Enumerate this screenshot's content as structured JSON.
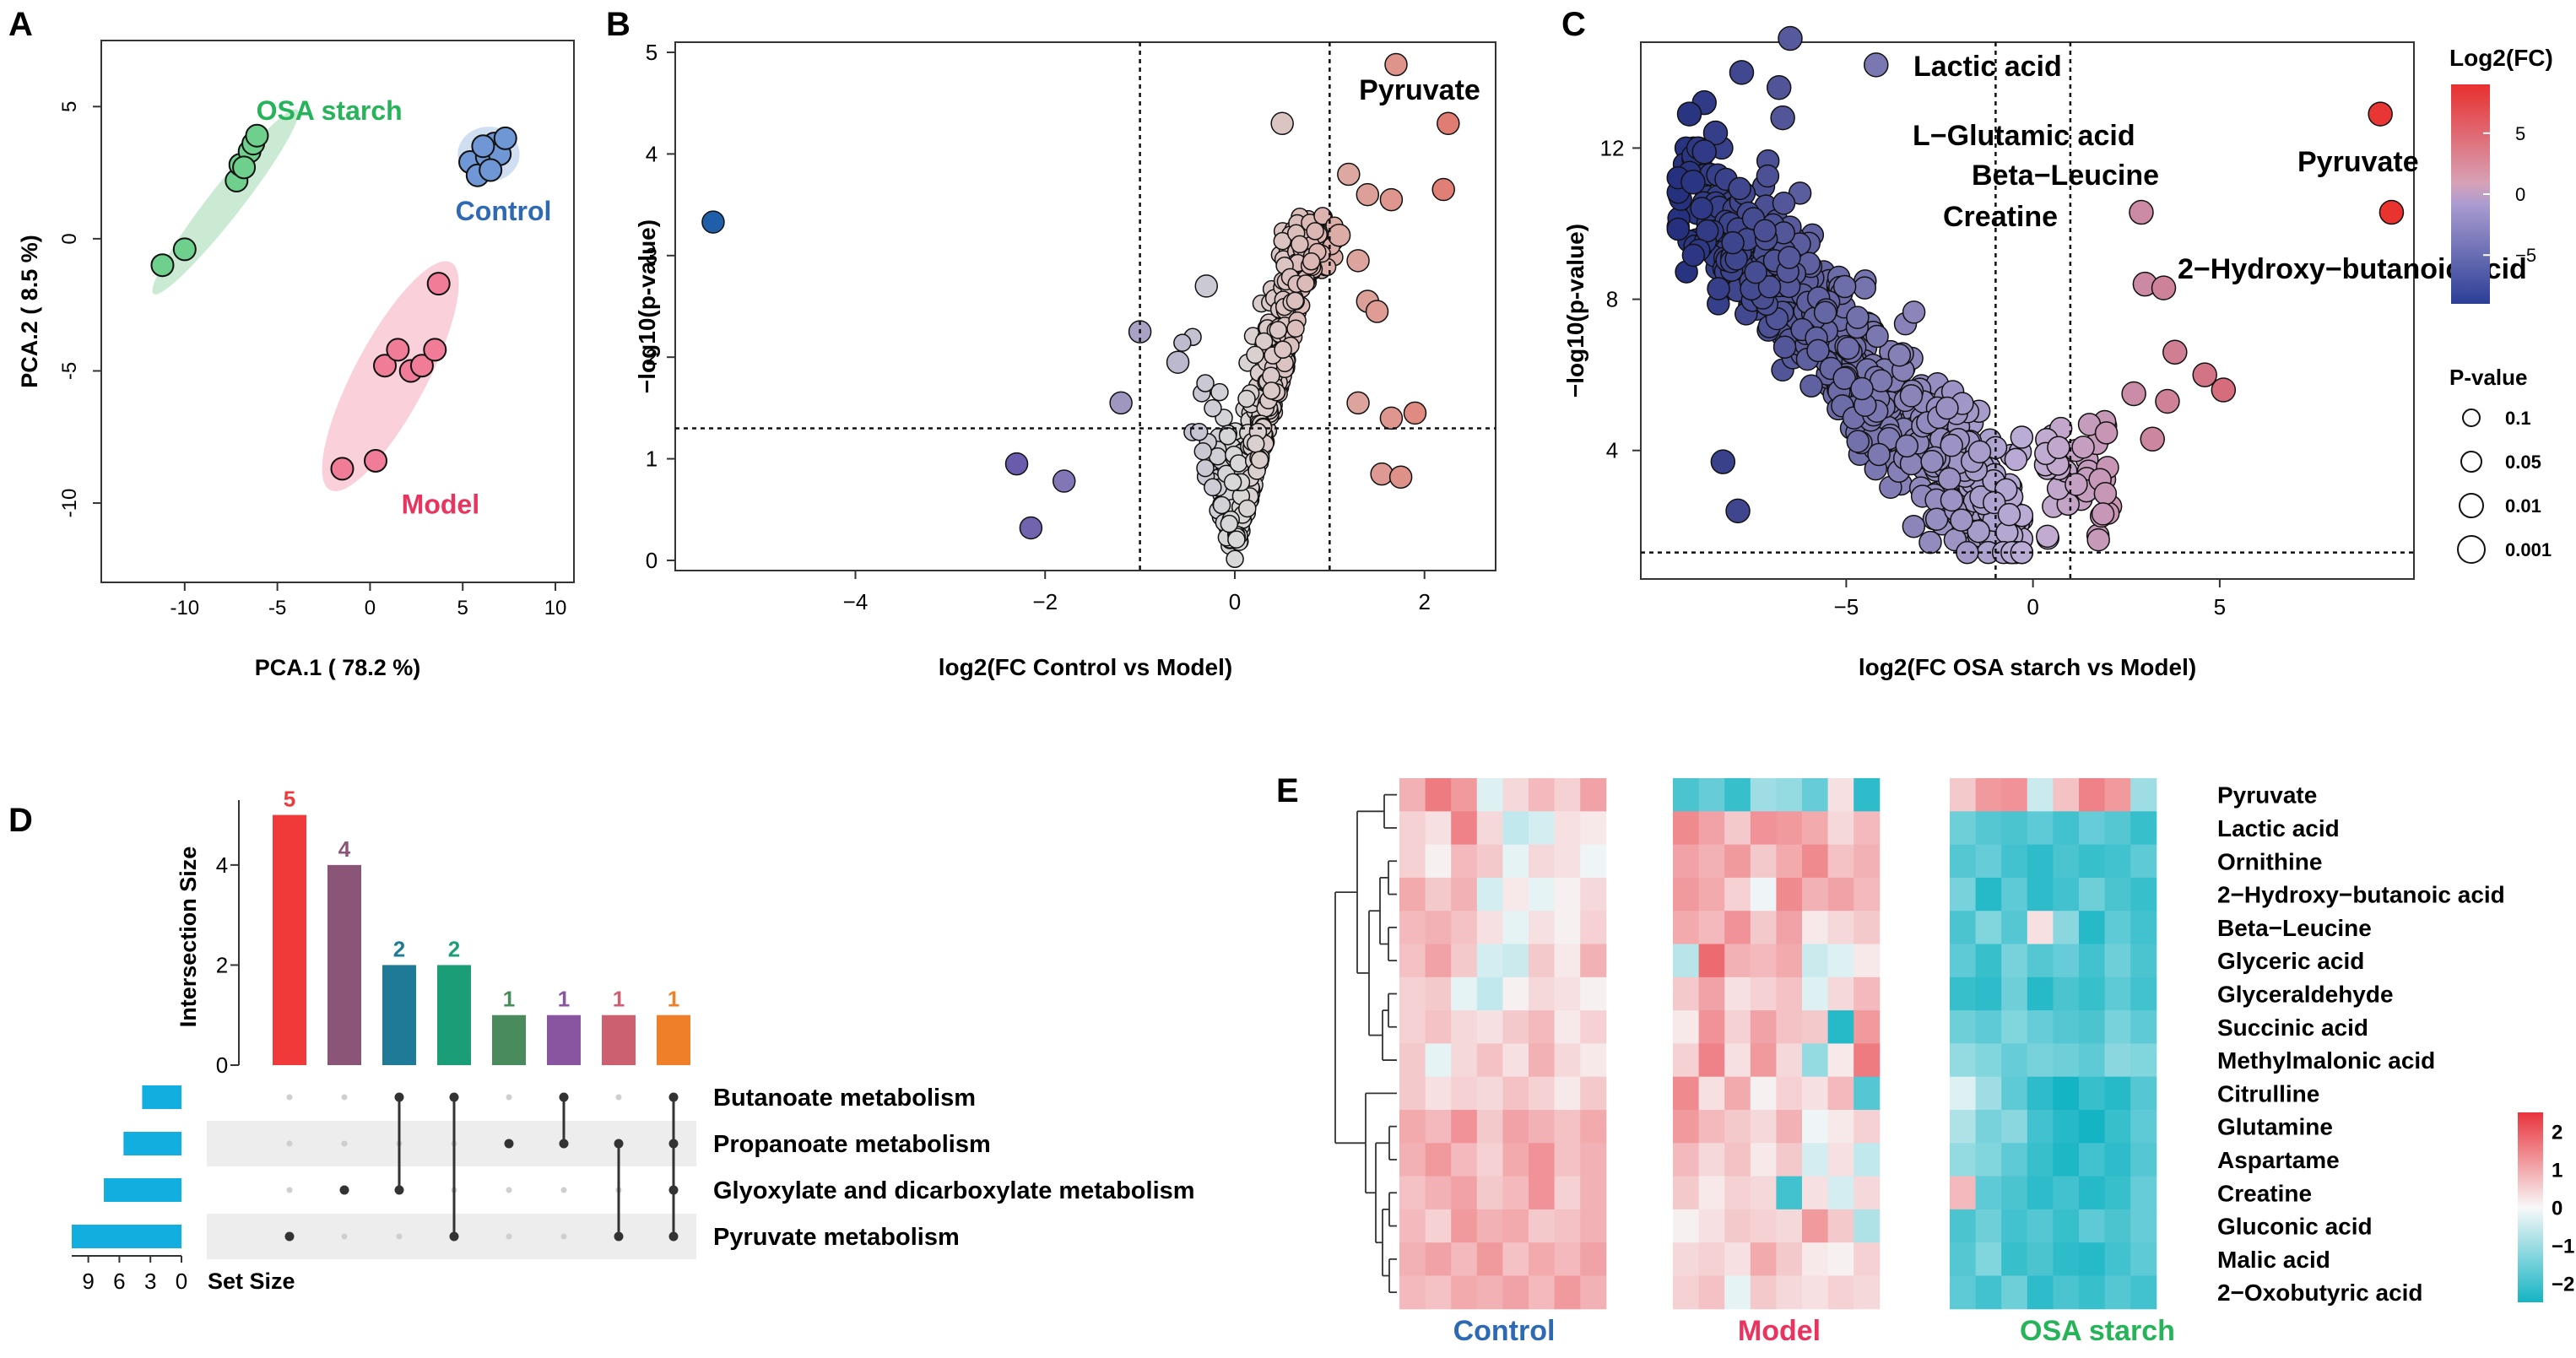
{
  "figure_title": "",
  "colors": {
    "osa": "#27b35a",
    "control": "#2e6ab4",
    "model": "#e8345f",
    "heat_high": "#e8343d",
    "heat_mid": "#f8f8f8",
    "heat_low": "#14b4c4"
  },
  "chart_data": [
    {
      "panel": "A",
      "type": "scatter",
      "title": "",
      "xlabel": "PCA.1 ( 78.2 %)",
      "ylabel": "PCA.2 ( 8.5 %)",
      "xlim": [
        -14.5,
        11
      ],
      "ylim": [
        -13,
        7.5
      ],
      "xticks": [
        -10,
        -5,
        0,
        5,
        10
      ],
      "yticks": [
        5,
        0,
        -5,
        -10
      ],
      "series": [
        {
          "name": "OSA starch",
          "color": "#6fd08e",
          "x": [
            -11.2,
            -10,
            -7.2,
            -7,
            -6.5,
            -6.3,
            -6.1,
            -6.8
          ],
          "y": [
            -1,
            -0.4,
            2.2,
            2.8,
            3.3,
            3.6,
            3.9,
            2.7
          ]
        },
        {
          "name": "Control",
          "color": "#6f97d6",
          "x": [
            5.4,
            5.8,
            6.3,
            6.7,
            7,
            7.3,
            6.5,
            6.1
          ],
          "y": [
            2.9,
            2.4,
            3.1,
            3.6,
            3.2,
            3.8,
            2.6,
            3.5
          ]
        },
        {
          "name": "Model",
          "color": "#f07c98",
          "x": [
            -1.5,
            0.3,
            0.8,
            1.5,
            2.2,
            2.8,
            3.5,
            3.7
          ],
          "y": [
            -8.7,
            -8.4,
            -4.8,
            -4.2,
            -5,
            -4.8,
            -4.2,
            -1.7
          ]
        }
      ]
    },
    {
      "panel": "B",
      "type": "scatter",
      "title": "",
      "xlabel": "log2(FC Control vs Model)",
      "ylabel": "−log10(p-value)",
      "xlim": [
        -5.9,
        2.75
      ],
      "ylim": [
        -0.1,
        5.1
      ],
      "xticks": [
        -4,
        -2,
        0,
        2
      ],
      "yticks": [
        0,
        1,
        2,
        3,
        4,
        5
      ],
      "hline": 1.3,
      "vlines": [
        -1,
        1
      ],
      "labels": [
        {
          "text": "Pyruvate",
          "x": 1.7,
          "y": 4.88
        }
      ],
      "highlights": [
        {
          "x": -5.5,
          "y": 3.33
        },
        {
          "x": 1.7,
          "y": 4.88
        },
        {
          "x": 2.25,
          "y": 4.3
        },
        {
          "x": 0.5,
          "y": 4.3
        },
        {
          "x": 1.2,
          "y": 3.8
        },
        {
          "x": 2.2,
          "y": 3.65
        },
        {
          "x": 1.4,
          "y": 3.6
        },
        {
          "x": 1.65,
          "y": 3.55
        },
        {
          "x": 1.1,
          "y": 3.2
        },
        {
          "x": 1.3,
          "y": 2.95
        },
        {
          "x": 1.4,
          "y": 2.55
        },
        {
          "x": 1.5,
          "y": 2.45
        },
        {
          "x": 1.3,
          "y": 1.55
        },
        {
          "x": 1.65,
          "y": 1.4
        },
        {
          "x": 1.9,
          "y": 1.45
        },
        {
          "x": 1.55,
          "y": 0.85
        },
        {
          "x": 1.75,
          "y": 0.82
        },
        {
          "x": -1.0,
          "y": 2.25
        },
        {
          "x": -1.2,
          "y": 1.55
        },
        {
          "x": -2.3,
          "y": 0.95
        },
        {
          "x": -1.8,
          "y": 0.78
        },
        {
          "x": -2.15,
          "y": 0.32
        },
        {
          "x": -0.6,
          "y": 1.95
        },
        {
          "x": -0.3,
          "y": 2.7
        }
      ]
    },
    {
      "panel": "C",
      "type": "scatter",
      "title": "",
      "xlabel": "log2(FC OSA starch vs Model)",
      "ylabel": "−log10(p-value)",
      "xlim": [
        -10.5,
        10.2
      ],
      "ylim": [
        0.6,
        14.8
      ],
      "xticks": [
        -5,
        0,
        5
      ],
      "yticks": [
        4,
        8,
        12
      ],
      "hline": 1.3,
      "vlines": [
        -1,
        1
      ],
      "labels": [
        {
          "text": "Lactic acid",
          "x": -5.3,
          "y": 14.3
        },
        {
          "text": "L−Glutamic acid",
          "x": -6.2,
          "y": 13.0
        },
        {
          "text": "Beta−Leucine",
          "x": -5.0,
          "y": 12.3
        },
        {
          "text": "Creatine",
          "x": -4.5,
          "y": 11.5
        },
        {
          "text": "Pyruvate",
          "x": 4.7,
          "y": 12.3
        },
        {
          "text": "2−Hydroxy−butanoic acid",
          "x": -1.3,
          "y": 10.5
        }
      ],
      "highlights": [
        {
          "x": 9.3,
          "y": 12.9
        },
        {
          "x": 9.6,
          "y": 10.3
        },
        {
          "x": -6.5,
          "y": 14.9
        },
        {
          "x": -4.2,
          "y": 14.2
        },
        {
          "x": -7.8,
          "y": 14.0
        },
        {
          "x": -6.8,
          "y": 13.6
        },
        {
          "x": -8.8,
          "y": 13.2
        },
        {
          "x": -9.2,
          "y": 12.9
        },
        {
          "x": -6.7,
          "y": 12.8
        },
        {
          "x": -8.5,
          "y": 12.4
        },
        {
          "x": -8.8,
          "y": 11.9
        },
        {
          "x": -9.1,
          "y": 11.1
        },
        {
          "x": -8.3,
          "y": 3.7
        },
        {
          "x": -7.9,
          "y": 2.4
        },
        {
          "x": 2.9,
          "y": 10.3
        },
        {
          "x": 3.0,
          "y": 8.4
        },
        {
          "x": 3.5,
          "y": 8.3
        },
        {
          "x": 3.8,
          "y": 6.6
        },
        {
          "x": 4.6,
          "y": 6.0
        },
        {
          "x": 5.1,
          "y": 5.6
        },
        {
          "x": 2.7,
          "y": 5.5
        },
        {
          "x": 3.6,
          "y": 5.3
        },
        {
          "x": 3.2,
          "y": 4.3
        }
      ],
      "legend": {
        "color_title": "Log2(FC)",
        "color_ticks": [
          5,
          0,
          -5
        ],
        "size_title": "P-value",
        "size_entries": [
          "0.1",
          "0.05",
          "0.01",
          "0.001"
        ]
      }
    },
    {
      "panel": "D",
      "type": "upset",
      "title": "",
      "ylabel": "Intersection Size",
      "yticks": [
        0,
        2,
        4
      ],
      "ylim": [
        0,
        5.6
      ],
      "bars": [
        {
          "value": 5,
          "color": "#f03a3a"
        },
        {
          "value": 4,
          "color": "#8a5576"
        },
        {
          "value": 2,
          "color": "#1f7a97"
        },
        {
          "value": 2,
          "color": "#1b9e77"
        },
        {
          "value": 1,
          "color": "#4a8b5d"
        },
        {
          "value": 1,
          "color": "#8a55a0"
        },
        {
          "value": 1,
          "color": "#cc6070"
        },
        {
          "value": 1,
          "color": "#f07f2a"
        }
      ],
      "sets": [
        "Butanoate metabolism",
        "Propanoate metabolism",
        "Glyoxylate and dicarboxylate metabolism",
        "Pyruvate metabolism"
      ],
      "set_sizes": [
        3.8,
        5.6,
        7.5,
        10.6
      ],
      "set_size_ticks": [
        9,
        6,
        3,
        0
      ],
      "set_size_label": "Set Size",
      "set_bar_color": "#13aee0",
      "matrix": [
        [
          3
        ],
        [
          2
        ],
        [
          0,
          2
        ],
        [
          0,
          3
        ],
        [
          1
        ],
        [
          0,
          1
        ],
        [
          1,
          3
        ],
        [
          0,
          1,
          2,
          3
        ]
      ]
    },
    {
      "panel": "E",
      "type": "heatmap",
      "title": "",
      "rows": [
        "Pyruvate",
        "Lactic acid",
        "Ornithine",
        "2−Hydroxy−butanoic acid",
        "Beta−Leucine",
        "Glyceric acid",
        "Glyceraldehyde",
        "Succinic acid",
        "Methylmalonic acid",
        "Citrulline",
        "Glutamine",
        "Aspartame",
        "Creatine",
        "Gluconic acid",
        "Malic acid",
        "2−Oxobutyric acid"
      ],
      "groups": [
        "Control",
        "Model",
        "OSA starch"
      ],
      "group_colors": [
        "#2e6ab4",
        "#e8345f",
        "#27b35a"
      ],
      "columns_per_group": 8,
      "color_range": [
        -2.5,
        2.5
      ],
      "color_ticks": [
        2,
        1,
        0,
        -1,
        -2
      ],
      "values": [
        [
          [
            0.9,
            1.6,
            1.2,
            -0.3,
            0.4,
            0.8,
            0.5,
            1.1
          ],
          [
            -1.9,
            -1.6,
            -2.1,
            -1.0,
            -1.1,
            -1.6,
            0.3,
            -2.2
          ],
          [
            0.6,
            1.2,
            1.3,
            -0.5,
            0.7,
            1.5,
            1.2,
            -1.0
          ]
        ],
        [
          [
            0.5,
            0.3,
            1.5,
            0.4,
            -0.6,
            -0.4,
            0.3,
            0.2
          ],
          [
            1.4,
            1.1,
            0.6,
            1.3,
            1.2,
            1.0,
            0.4,
            0.8
          ],
          [
            -1.5,
            -1.8,
            -1.9,
            -1.7,
            -2.0,
            -1.6,
            -1.8,
            -2.1
          ]
        ],
        [
          [
            0.5,
            0.1,
            0.8,
            0.6,
            -0.2,
            0.4,
            0.3,
            -0.1
          ],
          [
            1.1,
            0.9,
            1.2,
            0.6,
            1.0,
            1.4,
            0.7,
            0.9
          ],
          [
            -1.8,
            -1.6,
            -2.0,
            -2.2,
            -1.9,
            -2.1,
            -2.0,
            -1.7
          ]
        ],
        [
          [
            1.0,
            0.6,
            0.9,
            -0.4,
            0.2,
            -0.2,
            0.1,
            0.4
          ],
          [
            1.2,
            1.0,
            0.5,
            -0.1,
            1.4,
            0.9,
            1.1,
            0.8
          ],
          [
            -1.4,
            -2.3,
            -1.7,
            -2.2,
            -2.0,
            -1.5,
            -1.9,
            -2.1
          ]
        ],
        [
          [
            0.8,
            0.9,
            0.7,
            0.3,
            -0.2,
            0.3,
            0.1,
            0.5
          ],
          [
            1.0,
            0.8,
            1.3,
            0.6,
            1.1,
            0.2,
            0.4,
            0.6
          ],
          [
            -1.9,
            -1.3,
            -1.8,
            0.3,
            -1.2,
            -2.3,
            -1.7,
            -2.0
          ]
        ],
        [
          [
            0.7,
            1.1,
            0.6,
            -0.4,
            -0.5,
            0.6,
            0.2,
            0.9
          ],
          [
            -0.7,
            1.8,
            0.9,
            0.8,
            1.0,
            -0.5,
            -0.3,
            0.2
          ],
          [
            -1.7,
            -2.1,
            -1.4,
            -1.8,
            -1.6,
            -2.0,
            -1.5,
            -1.9
          ]
        ],
        [
          [
            0.5,
            0.6,
            -0.2,
            -0.6,
            0.1,
            0.4,
            0.3,
            0.1
          ],
          [
            0.6,
            1.1,
            0.3,
            0.5,
            0.7,
            -0.3,
            0.4,
            0.8
          ],
          [
            -2.1,
            -2.2,
            -1.5,
            -2.3,
            -1.9,
            -2.1,
            -1.7,
            -2.0
          ]
        ],
        [
          [
            0.5,
            0.7,
            0.4,
            0.3,
            0.6,
            0.8,
            0.2,
            0.5
          ],
          [
            0.2,
            1.3,
            0.5,
            1.1,
            0.7,
            0.6,
            -2.3,
            1.2
          ],
          [
            -1.5,
            -1.7,
            -1.3,
            -1.6,
            -1.8,
            -1.9,
            -1.4,
            -1.7
          ]
        ],
        [
          [
            0.6,
            -0.2,
            0.4,
            0.7,
            0.3,
            0.9,
            0.4,
            0.2
          ],
          [
            0.5,
            1.5,
            0.3,
            1.2,
            0.4,
            -1.1,
            0.2,
            1.6
          ],
          [
            -1.1,
            -1.3,
            -1.6,
            -1.4,
            -1.5,
            -1.7,
            -1.2,
            -1.3
          ]
        ],
        [
          [
            0.6,
            0.3,
            0.5,
            0.4,
            0.7,
            0.5,
            0.2,
            0.6
          ],
          [
            1.4,
            0.3,
            1.0,
            0.1,
            0.5,
            0.3,
            0.8,
            -1.8
          ],
          [
            -0.3,
            -1.0,
            -1.7,
            -2.2,
            -2.6,
            -2.1,
            -2.3,
            -1.8
          ]
        ],
        [
          [
            1.0,
            0.8,
            1.3,
            0.6,
            1.1,
            0.9,
            0.7,
            1.0
          ],
          [
            1.2,
            0.8,
            0.6,
            0.4,
            0.9,
            -0.1,
            0.2,
            0.5
          ],
          [
            -0.8,
            -1.4,
            -1.2,
            -2.0,
            -2.3,
            -2.8,
            -2.1,
            -1.7
          ]
        ],
        [
          [
            0.9,
            1.2,
            0.8,
            0.5,
            1.0,
            1.3,
            0.7,
            0.9
          ],
          [
            0.8,
            0.4,
            0.7,
            0.2,
            0.6,
            -0.4,
            0.3,
            -0.6
          ],
          [
            -1.1,
            -1.3,
            -1.7,
            -2.1,
            -2.4,
            -2.0,
            -2.2,
            -1.8
          ]
        ],
        [
          [
            0.7,
            0.9,
            1.1,
            0.6,
            0.8,
            1.3,
            0.5,
            0.9
          ],
          [
            0.6,
            0.2,
            0.5,
            0.4,
            -2.0,
            0.3,
            -0.4,
            0.4
          ],
          [
            0.8,
            -1.7,
            -1.9,
            -2.2,
            -2.0,
            -2.3,
            -2.1,
            -1.6
          ]
        ],
        [
          [
            0.8,
            0.5,
            1.2,
            0.9,
            1.0,
            0.6,
            0.7,
            0.9
          ],
          [
            0.1,
            0.3,
            0.6,
            0.5,
            0.4,
            1.2,
            0.6,
            -0.8
          ],
          [
            -1.9,
            -1.5,
            -2.0,
            -1.8,
            -2.1,
            -1.7,
            -1.9,
            -1.6
          ]
        ],
        [
          [
            0.9,
            1.1,
            0.8,
            1.2,
            0.7,
            1.0,
            0.8,
            1.1
          ],
          [
            0.4,
            0.5,
            0.3,
            1.0,
            0.6,
            0.2,
            0.1,
            0.5
          ],
          [
            -1.8,
            -1.3,
            -2.1,
            -1.9,
            -2.2,
            -2.3,
            -2.0,
            -1.7
          ]
        ],
        [
          [
            0.8,
            0.7,
            1.0,
            0.9,
            1.1,
            0.8,
            1.2,
            0.9
          ],
          [
            0.5,
            0.7,
            -0.2,
            0.6,
            0.4,
            0.3,
            0.5,
            0.4
          ],
          [
            -1.7,
            -2.0,
            -1.5,
            -2.2,
            -1.9,
            -2.1,
            -1.8,
            -2.0
          ]
        ]
      ]
    }
  ]
}
